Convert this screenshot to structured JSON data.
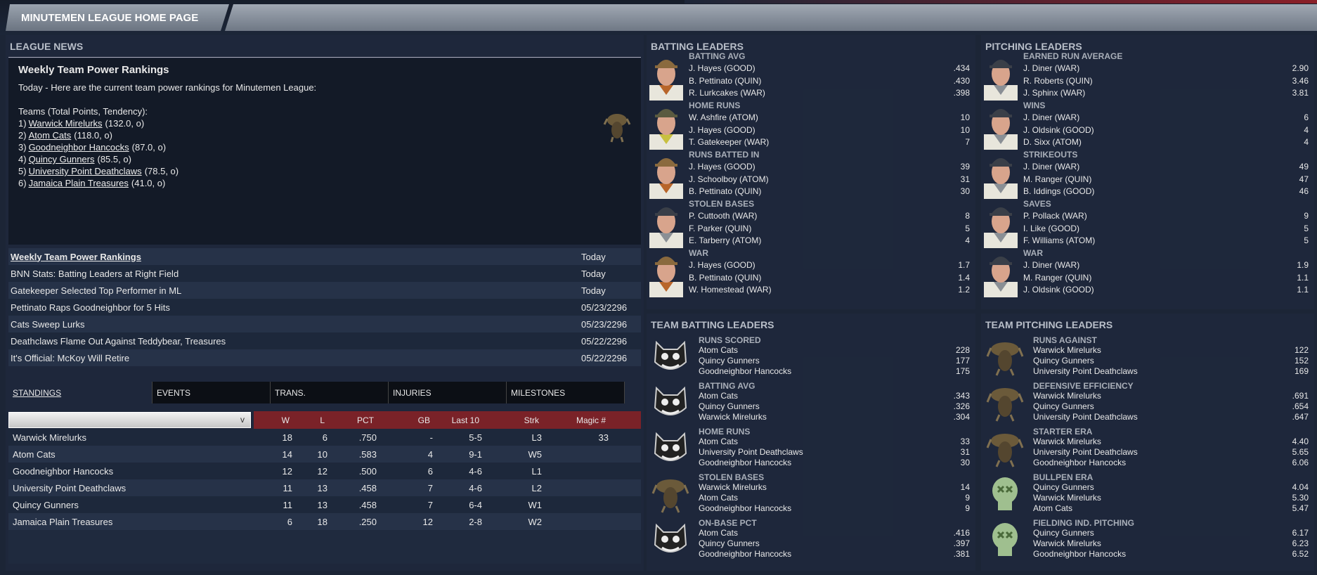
{
  "header": {
    "title": "MINUTEMEN LEAGUE HOME PAGE"
  },
  "news": {
    "heading": "LEAGUE NEWS",
    "article": {
      "title": "Weekly Team Power Rankings",
      "intro": "Today - Here are the current team power rankings for Minutemen League:",
      "subhead": "Teams (Total Points, Tendency):",
      "rankings": [
        {
          "rank": "1)",
          "team": "Warwick Mirelurks",
          "pts": "(132.0, o)"
        },
        {
          "rank": "2)",
          "team": "Atom Cats",
          "pts": "(118.0, o)"
        },
        {
          "rank": "3)",
          "team": "Goodneighbor Hancocks",
          "pts": "(87.0, o)"
        },
        {
          "rank": "4)",
          "team": "Quincy Gunners",
          "pts": "(85.5, o)"
        },
        {
          "rank": "5)",
          "team": "University Point Deathclaws",
          "pts": "(78.5, o)"
        },
        {
          "rank": "6)",
          "team": "Jamaica Plain Treasures",
          "pts": "(41.0, o)"
        }
      ]
    },
    "items": [
      {
        "title": "Weekly Team Power Rankings",
        "date": "Today"
      },
      {
        "title": "BNN Stats: Batting Leaders at Right Field",
        "date": "Today"
      },
      {
        "title": "Gatekeeper Selected Top Performer in ML",
        "date": "Today"
      },
      {
        "title": "Pettinato Raps Goodneighbor for 5 Hits",
        "date": "05/23/2296"
      },
      {
        "title": "Cats Sweep Lurks",
        "date": "05/23/2296"
      },
      {
        "title": "Deathclaws Flame Out Against Teddybear, Treasures",
        "date": "05/22/2296"
      },
      {
        "title": "It's Official: McKoy Will Retire",
        "date": "05/22/2296"
      }
    ]
  },
  "tabs": [
    "STANDINGS",
    "EVENTS",
    "TRANS.",
    "INJURIES",
    "MILESTONES"
  ],
  "standings": {
    "dropdown_icon": "v",
    "columns": [
      "W",
      "L",
      "PCT",
      "GB",
      "Last 10",
      "Strk",
      "Magic #"
    ],
    "rows": [
      [
        "Warwick Mirelurks",
        "18",
        "6",
        ".750",
        "-",
        "5-5",
        "L3",
        "33"
      ],
      [
        "Atom Cats",
        "14",
        "10",
        ".583",
        "4",
        "9-1",
        "W5",
        ""
      ],
      [
        "Goodneighbor Hancocks",
        "12",
        "12",
        ".500",
        "6",
        "4-6",
        "L1",
        ""
      ],
      [
        "University Point Deathclaws",
        "11",
        "13",
        ".458",
        "7",
        "4-6",
        "L2",
        ""
      ],
      [
        "Quincy Gunners",
        "11",
        "13",
        ".458",
        "7",
        "6-4",
        "W1",
        ""
      ],
      [
        "Jamaica Plain Treasures",
        "6",
        "18",
        ".250",
        "12",
        "2-8",
        "W2",
        ""
      ]
    ]
  },
  "batting": {
    "heading": "BATTING LEADERS",
    "cats": [
      {
        "label": "BATTING AVG",
        "cap": "brown",
        "rows": [
          [
            "J. Hayes (GOOD)",
            ".434"
          ],
          [
            "B. Pettinato (QUIN)",
            ".430"
          ],
          [
            "R. Lurkcakes (WAR)",
            ".398"
          ]
        ]
      },
      {
        "label": "HOME RUNS",
        "cap": "olive",
        "rows": [
          [
            "W. Ashfire (ATOM)",
            "10"
          ],
          [
            "J. Hayes (GOOD)",
            "10"
          ],
          [
            "T. Gatekeeper (WAR)",
            "7"
          ]
        ]
      },
      {
        "label": "RUNS BATTED IN",
        "cap": "brown",
        "rows": [
          [
            "J. Hayes (GOOD)",
            "39"
          ],
          [
            "J. Schoolboy (ATOM)",
            "31"
          ],
          [
            "B. Pettinato (QUIN)",
            "30"
          ]
        ]
      },
      {
        "label": "STOLEN BASES",
        "cap": "gray",
        "rows": [
          [
            "P. Cuttooth (WAR)",
            "8"
          ],
          [
            "F. Parker (QUIN)",
            "5"
          ],
          [
            "E. Tarberry (ATOM)",
            "4"
          ]
        ]
      },
      {
        "label": "WAR",
        "cap": "brown",
        "rows": [
          [
            "J. Hayes (GOOD)",
            "1.7"
          ],
          [
            "B. Pettinato (QUIN)",
            "1.4"
          ],
          [
            "W. Homestead (WAR)",
            "1.2"
          ]
        ]
      }
    ]
  },
  "pitching": {
    "heading": "PITCHING LEADERS",
    "cats": [
      {
        "label": "EARNED RUN AVERAGE",
        "cap": "gray",
        "rows": [
          [
            "J. Diner (WAR)",
            "2.90"
          ],
          [
            "R. Roberts (QUIN)",
            "3.46"
          ],
          [
            "J. Sphinx (WAR)",
            "3.81"
          ]
        ]
      },
      {
        "label": "WINS",
        "cap": "gray",
        "rows": [
          [
            "J. Diner (WAR)",
            "6"
          ],
          [
            "J. Oldsink (GOOD)",
            "4"
          ],
          [
            "D. Sixx (ATOM)",
            "4"
          ]
        ]
      },
      {
        "label": "STRIKEOUTS",
        "cap": "gray",
        "rows": [
          [
            "J. Diner (WAR)",
            "49"
          ],
          [
            "M. Ranger (QUIN)",
            "47"
          ],
          [
            "B. Iddings (GOOD)",
            "46"
          ]
        ]
      },
      {
        "label": "SAVES",
        "cap": "gray",
        "rows": [
          [
            "P. Pollack (WAR)",
            "9"
          ],
          [
            "I. Like (GOOD)",
            "5"
          ],
          [
            "F. Williams (ATOM)",
            "5"
          ]
        ]
      },
      {
        "label": "WAR",
        "cap": "gray",
        "rows": [
          [
            "J. Diner (WAR)",
            "1.9"
          ],
          [
            "M. Ranger (QUIN)",
            "1.1"
          ],
          [
            "J. Oldsink (GOOD)",
            "1.1"
          ]
        ]
      }
    ]
  },
  "team_batting": {
    "heading": "TEAM BATTING LEADERS",
    "cats": [
      {
        "label": "RUNS SCORED",
        "logo": "cat",
        "rows": [
          [
            "Atom Cats",
            "228"
          ],
          [
            "Quincy Gunners",
            "177"
          ],
          [
            "Goodneighbor Hancocks",
            "175"
          ]
        ]
      },
      {
        "label": "BATTING AVG",
        "logo": "cat",
        "rows": [
          [
            "Atom Cats",
            ".343"
          ],
          [
            "Quincy Gunners",
            ".326"
          ],
          [
            "Warwick Mirelurks",
            ".304"
          ]
        ]
      },
      {
        "label": "HOME RUNS",
        "logo": "cat",
        "rows": [
          [
            "Atom Cats",
            "33"
          ],
          [
            "University Point Deathclaws",
            "31"
          ],
          [
            "Goodneighbor Hancocks",
            "30"
          ]
        ]
      },
      {
        "label": "STOLEN BASES",
        "logo": "mirelurk",
        "rows": [
          [
            "Warwick Mirelurks",
            "14"
          ],
          [
            "Atom Cats",
            "9"
          ],
          [
            "Goodneighbor Hancocks",
            "9"
          ]
        ]
      },
      {
        "label": "ON-BASE PCT",
        "logo": "cat",
        "rows": [
          [
            "Atom Cats",
            ".416"
          ],
          [
            "Quincy Gunners",
            ".397"
          ],
          [
            "Goodneighbor Hancocks",
            ".381"
          ]
        ]
      }
    ]
  },
  "team_pitching": {
    "heading": "TEAM PITCHING LEADERS",
    "cats": [
      {
        "label": "RUNS AGAINST",
        "logo": "mirelurk",
        "rows": [
          [
            "Warwick Mirelurks",
            "122"
          ],
          [
            "Quincy Gunners",
            "152"
          ],
          [
            "University Point Deathclaws",
            "169"
          ]
        ]
      },
      {
        "label": "DEFENSIVE EFFICIENCY",
        "logo": "mirelurk",
        "rows": [
          [
            "Warwick Mirelurks",
            ".691"
          ],
          [
            "Quincy Gunners",
            ".654"
          ],
          [
            "University Point Deathclaws",
            ".647"
          ]
        ]
      },
      {
        "label": "STARTER ERA",
        "logo": "mirelurk",
        "rows": [
          [
            "Warwick Mirelurks",
            "4.40"
          ],
          [
            "University Point Deathclaws",
            "5.65"
          ],
          [
            "Goodneighbor Hancocks",
            "6.06"
          ]
        ]
      },
      {
        "label": "BULLPEN ERA",
        "logo": "skull",
        "rows": [
          [
            "Quincy Gunners",
            "4.04"
          ],
          [
            "Warwick Mirelurks",
            "5.30"
          ],
          [
            "Atom Cats",
            "5.47"
          ]
        ]
      },
      {
        "label": "FIELDING IND. PITCHING",
        "logo": "skull",
        "rows": [
          [
            "Quincy Gunners",
            "6.17"
          ],
          [
            "Warwick Mirelurks",
            "6.23"
          ],
          [
            "Goodneighbor Hancocks",
            "6.52"
          ]
        ]
      }
    ]
  }
}
